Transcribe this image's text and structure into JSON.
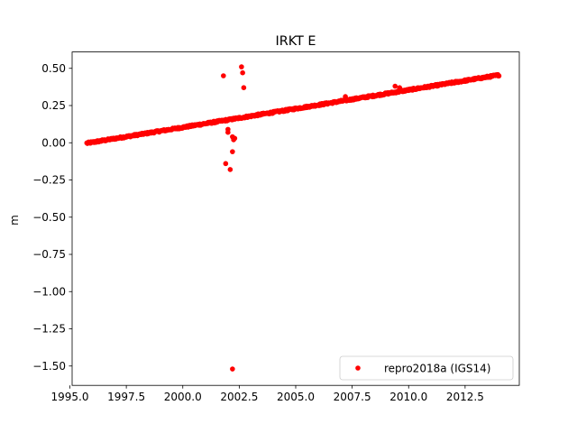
{
  "chart_data": {
    "type": "scatter",
    "title": "IRKT E",
    "xlabel": "",
    "ylabel": "m",
    "xlim": [
      1995.1,
      2014.9
    ],
    "ylim": [
      -1.63,
      0.61
    ],
    "xticks": [
      1995.0,
      1997.5,
      2000.0,
      2002.5,
      2005.0,
      2007.5,
      2010.0,
      2012.5
    ],
    "xtick_labels": [
      "1995.0",
      "1997.5",
      "2000.0",
      "2002.5",
      "2005.0",
      "2007.5",
      "2010.0",
      "2012.5"
    ],
    "yticks": [
      0.5,
      0.25,
      0.0,
      -0.25,
      -0.5,
      -0.75,
      -1.0,
      -1.25,
      -1.5
    ],
    "ytick_labels": [
      "0.50",
      "0.25",
      "0.00",
      "−0.25",
      "−0.50",
      "−0.75",
      "−1.00",
      "−1.25",
      "−1.50"
    ],
    "grid": false,
    "legend_position": "lower-right",
    "series": [
      {
        "name": "repro2018a (IGS14)",
        "color": "#ff0000",
        "marker": "circle",
        "trend": {
          "x_start": 1995.75,
          "x_end": 2014.0,
          "y_start": -0.003,
          "y_end": 0.455
        },
        "outliers": [
          {
            "x": 2001.8,
            "y": 0.45
          },
          {
            "x": 2002.6,
            "y": 0.51
          },
          {
            "x": 2002.65,
            "y": 0.47
          },
          {
            "x": 2002.7,
            "y": 0.37
          },
          {
            "x": 2009.4,
            "y": 0.38
          },
          {
            "x": 2009.6,
            "y": 0.37
          },
          {
            "x": 2007.2,
            "y": 0.31
          },
          {
            "x": 2002.0,
            "y": 0.09
          },
          {
            "x": 2002.0,
            "y": 0.07
          },
          {
            "x": 2002.2,
            "y": 0.04
          },
          {
            "x": 2002.25,
            "y": 0.02
          },
          {
            "x": 2002.3,
            "y": 0.03
          },
          {
            "x": 2002.2,
            "y": -0.06
          },
          {
            "x": 2001.9,
            "y": -0.14
          },
          {
            "x": 2002.1,
            "y": -0.18
          },
          {
            "x": 2002.2,
            "y": -1.52
          }
        ]
      }
    ]
  }
}
